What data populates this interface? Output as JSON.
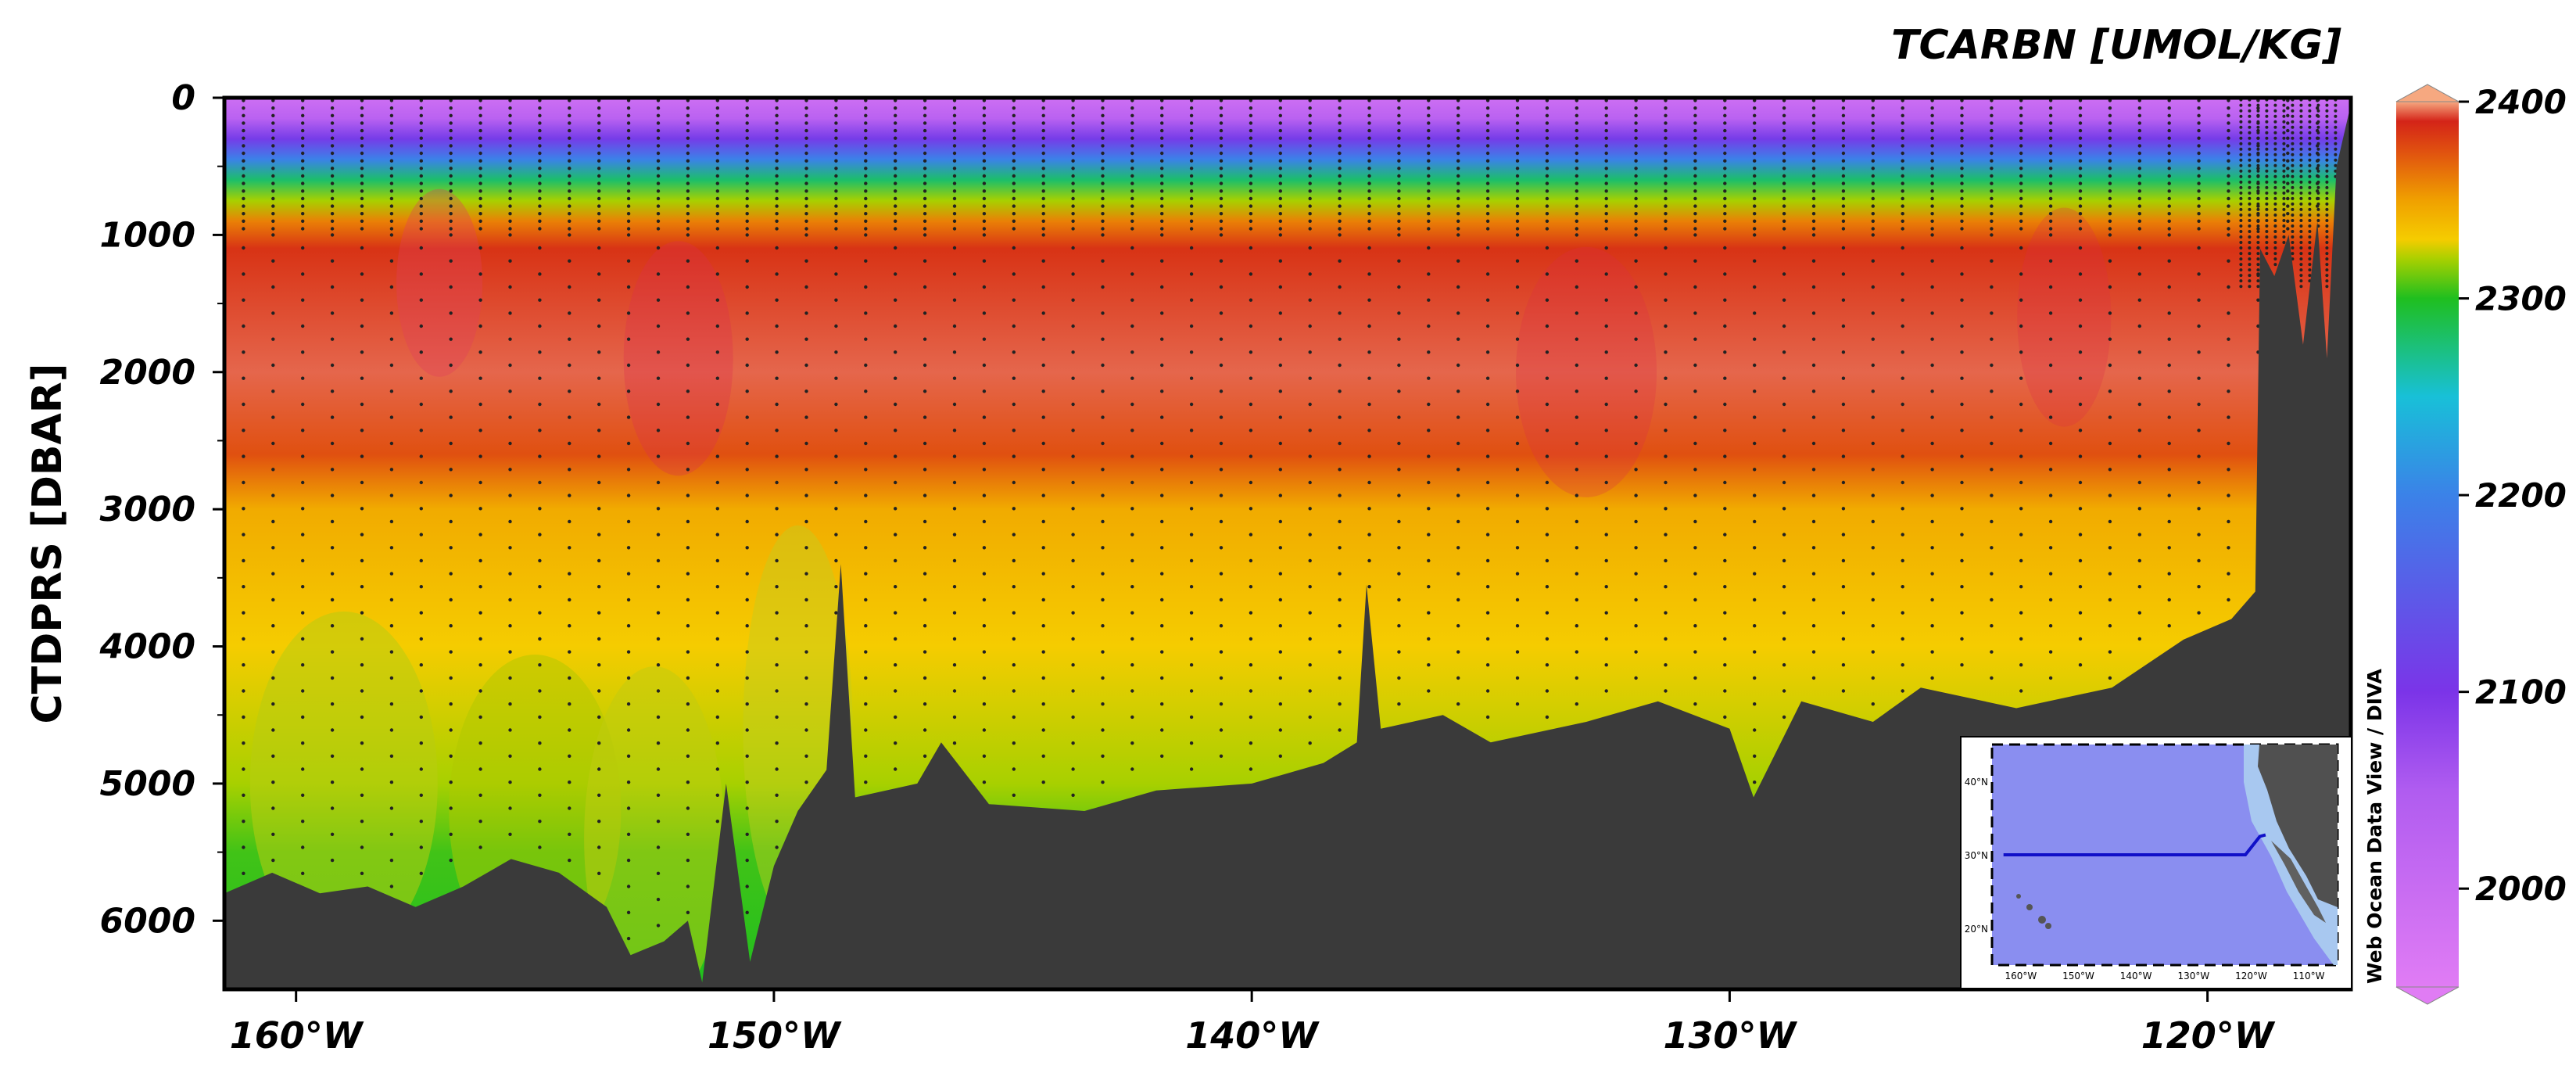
{
  "chart_data": {
    "type": "heatmap",
    "title": "TCARBN [UMOL/KG]",
    "xlabel": "",
    "ylabel": "CTDPRS [DBAR]",
    "x_ticks": [
      {
        "value": -160,
        "label": "160°W"
      },
      {
        "value": -150,
        "label": "150°W"
      },
      {
        "value": -140,
        "label": "140°W"
      },
      {
        "value": -130,
        "label": "130°W"
      },
      {
        "value": -120,
        "label": "120°W"
      }
    ],
    "y_ticks": [
      {
        "value": 0,
        "label": "0"
      },
      {
        "value": 1000,
        "label": "1000"
      },
      {
        "value": 2000,
        "label": "2000"
      },
      {
        "value": 3000,
        "label": "3000"
      },
      {
        "value": 4000,
        "label": "4000"
      },
      {
        "value": 5000,
        "label": "5000"
      },
      {
        "value": 6000,
        "label": "6000"
      }
    ],
    "xlim": [
      -161.5,
      -117.0
    ],
    "ylim": [
      6500,
      0
    ],
    "colorbar": {
      "range": [
        1950,
        2400
      ],
      "ticks": [
        {
          "value": 2000,
          "label": "2000"
        },
        {
          "value": 2100,
          "label": "2100"
        },
        {
          "value": 2200,
          "label": "2200"
        },
        {
          "value": 2300,
          "label": "2300"
        },
        {
          "value": 2400,
          "label": "2400"
        }
      ]
    },
    "depth_profile": [
      {
        "z": 0,
        "v": 1990
      },
      {
        "z": 150,
        "v": 2030
      },
      {
        "z": 300,
        "v": 2110
      },
      {
        "z": 450,
        "v": 2200
      },
      {
        "z": 600,
        "v": 2280
      },
      {
        "z": 750,
        "v": 2320
      },
      {
        "z": 900,
        "v": 2360
      },
      {
        "z": 1100,
        "v": 2385
      },
      {
        "z": 2000,
        "v": 2395
      },
      {
        "z": 2600,
        "v": 2375
      },
      {
        "z": 3000,
        "v": 2345
      },
      {
        "z": 4000,
        "v": 2330
      },
      {
        "z": 5000,
        "v": 2320
      },
      {
        "z": 5500,
        "v": 2305
      },
      {
        "z": 6500,
        "v": 2300
      }
    ],
    "seafloor_depth": [
      {
        "lon": -161.5,
        "d": 5800
      },
      {
        "lon": -160.5,
        "d": 5650
      },
      {
        "lon": -159.5,
        "d": 5800
      },
      {
        "lon": -158.5,
        "d": 5750
      },
      {
        "lon": -157.5,
        "d": 5900
      },
      {
        "lon": -156.5,
        "d": 5750
      },
      {
        "lon": -155.5,
        "d": 5550
      },
      {
        "lon": -154.5,
        "d": 5650
      },
      {
        "lon": -153.5,
        "d": 5900
      },
      {
        "lon": -153.0,
        "d": 6250
      },
      {
        "lon": -152.3,
        "d": 6150
      },
      {
        "lon": -151.8,
        "d": 6000
      },
      {
        "lon": -151.5,
        "d": 6450
      },
      {
        "lon": -151.0,
        "d": 5000
      },
      {
        "lon": -150.5,
        "d": 6300
      },
      {
        "lon": -150.0,
        "d": 5600
      },
      {
        "lon": -149.5,
        "d": 5200
      },
      {
        "lon": -148.9,
        "d": 4900
      },
      {
        "lon": -148.6,
        "d": 3400
      },
      {
        "lon": -148.3,
        "d": 5100
      },
      {
        "lon": -147.0,
        "d": 5000
      },
      {
        "lon": -146.5,
        "d": 4700
      },
      {
        "lon": -145.5,
        "d": 5150
      },
      {
        "lon": -143.5,
        "d": 5200
      },
      {
        "lon": -142.0,
        "d": 5050
      },
      {
        "lon": -140.0,
        "d": 5000
      },
      {
        "lon": -138.5,
        "d": 4850
      },
      {
        "lon": -137.8,
        "d": 4700
      },
      {
        "lon": -137.6,
        "d": 3550
      },
      {
        "lon": -137.3,
        "d": 4600
      },
      {
        "lon": -136.0,
        "d": 4500
      },
      {
        "lon": -135.0,
        "d": 4700
      },
      {
        "lon": -133.0,
        "d": 4550
      },
      {
        "lon": -131.5,
        "d": 4400
      },
      {
        "lon": -130.0,
        "d": 4600
      },
      {
        "lon": -129.5,
        "d": 5100
      },
      {
        "lon": -128.5,
        "d": 4400
      },
      {
        "lon": -127.0,
        "d": 4550
      },
      {
        "lon": -126.0,
        "d": 4300
      },
      {
        "lon": -124.0,
        "d": 4450
      },
      {
        "lon": -122.0,
        "d": 4300
      },
      {
        "lon": -120.5,
        "d": 3950
      },
      {
        "lon": -119.5,
        "d": 3800
      },
      {
        "lon": -119.0,
        "d": 3600
      },
      {
        "lon": -118.9,
        "d": 1100
      },
      {
        "lon": -118.6,
        "d": 1300
      },
      {
        "lon": -118.3,
        "d": 1000
      },
      {
        "lon": -118.0,
        "d": 1800
      },
      {
        "lon": -117.7,
        "d": 900
      },
      {
        "lon": -117.5,
        "d": 1900
      },
      {
        "lon": -117.3,
        "d": 500
      },
      {
        "lon": -117.0,
        "d": 50
      }
    ],
    "annotations": [
      "Web Ocean Data View / DIVA"
    ],
    "inset_map": {
      "lat_ticks": [
        "40°N",
        "30°N",
        "20°N"
      ],
      "lon_ticks": [
        "160°W",
        "150°W",
        "140°W",
        "130°W",
        "120°W",
        "110°W"
      ],
      "track_lat": 30,
      "track": [
        {
          "lon": -163,
          "lat": 30
        },
        {
          "lon": -121,
          "lat": 30
        },
        {
          "lon": -118.5,
          "lat": 32.5
        },
        {
          "lon": -117.5,
          "lat": 32.7
        }
      ]
    }
  },
  "colors": {
    "land": "#3a3a3a",
    "ocean_map": "#8a8ef0",
    "track": "#1010c8",
    "scale": [
      "#e07cf4",
      "#7b34e8",
      "#3b82e8",
      "#1fbf1f",
      "#f5cc00",
      "#f0a000",
      "#d42418",
      "#f6a880"
    ]
  }
}
